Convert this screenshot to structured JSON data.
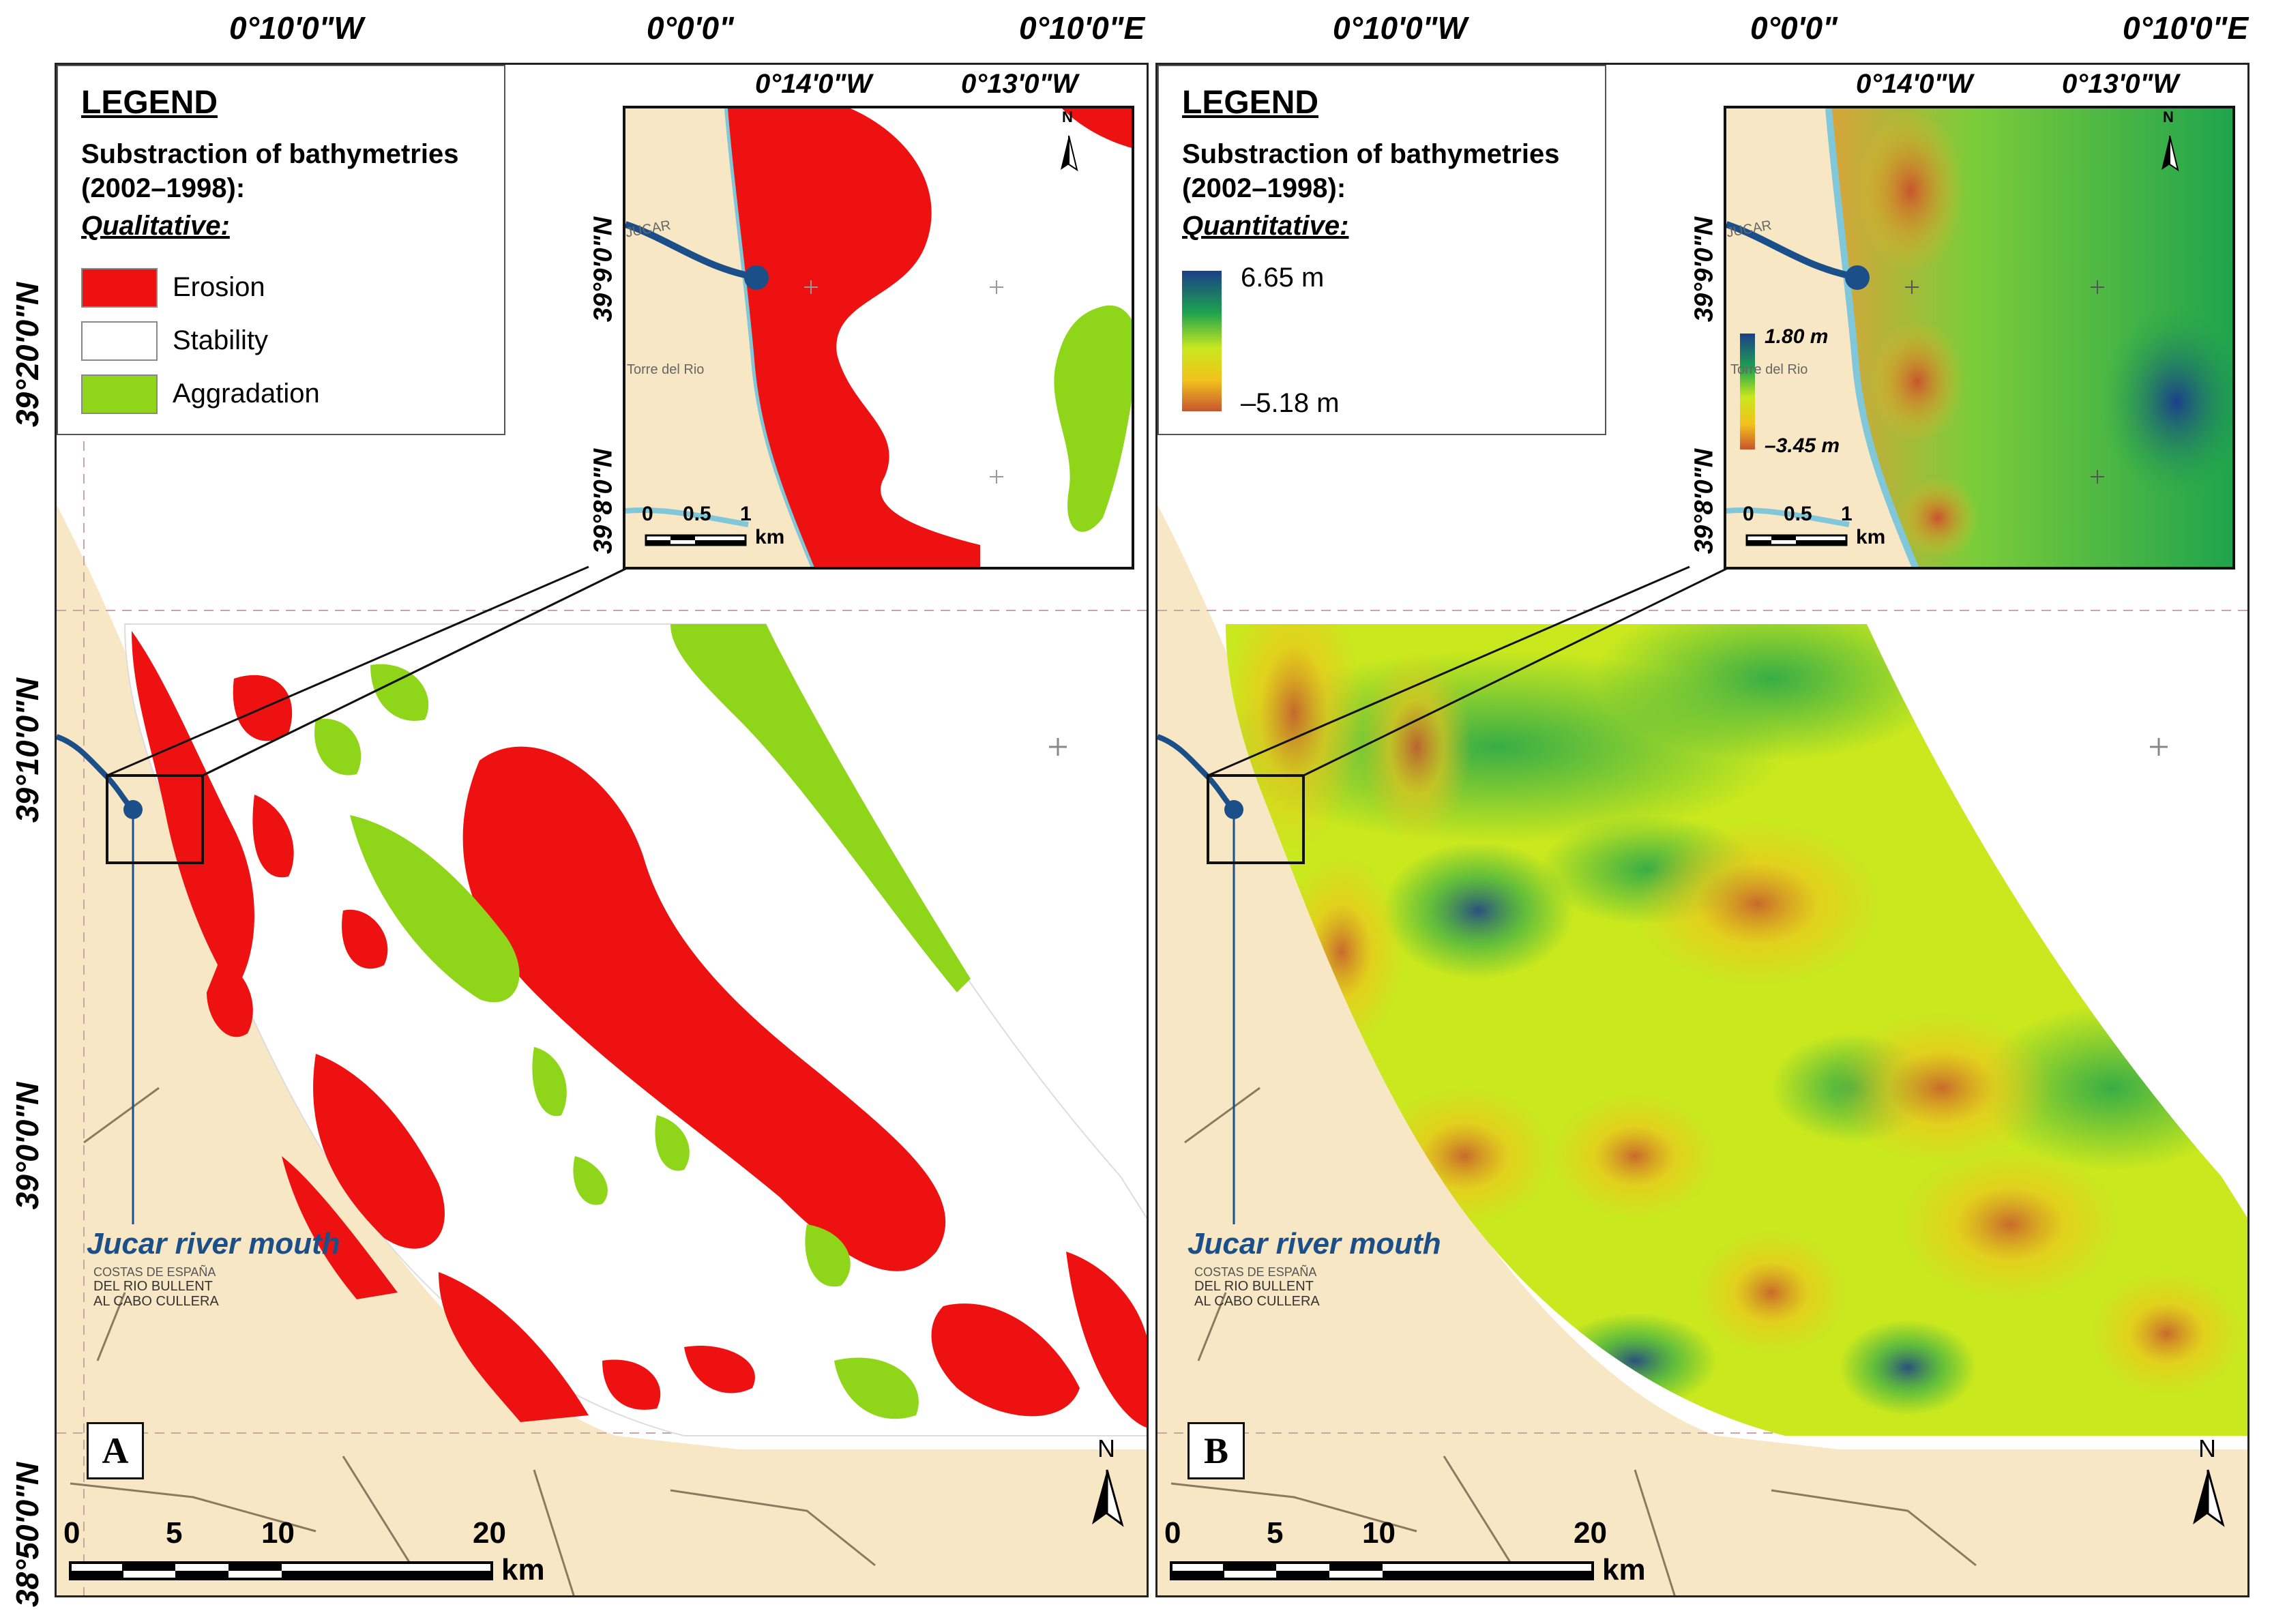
{
  "coordinates": {
    "top_lon_labels": [
      "0°10'0\"W",
      "0°0'0\"",
      "0°10'0\"E"
    ],
    "left_lat_labels": [
      "39°20'0\"N",
      "39°10'0\"N",
      "39°0'0\"N",
      "38°50'0\"N"
    ]
  },
  "panel_a": {
    "letter": "A",
    "legend": {
      "title": "LEGEND",
      "subtitle_line1": "Substraction of bathymetries",
      "subtitle_line2": "(2002–1998):",
      "kind": "Qualitative:",
      "items": [
        {
          "label": "Erosion",
          "color": "#ee1111"
        },
        {
          "label": "Stability",
          "color": "#ffffff"
        },
        {
          "label": "Aggradation",
          "color": "#8fd61a"
        }
      ]
    },
    "inset": {
      "lon_labels": [
        "0°14'0\"W",
        "0°13'0\"W"
      ],
      "lat_labels": [
        "39°9'0\"N",
        "39°8'0\"N"
      ],
      "scale_labels": [
        "0",
        "0.5",
        "1"
      ],
      "scale_unit": "km",
      "place_label": "Torre del Rio",
      "river_text": "JUCAR"
    },
    "river_label": "Jucar river mouth",
    "chart_text": [
      "COSTAS DE ESPAÑA",
      "DEL RIO BULLENT",
      "AL CABO CULLERA"
    ],
    "scale_labels": [
      "0",
      "5",
      "10",
      "20"
    ],
    "scale_unit": "km",
    "north": "N"
  },
  "panel_b": {
    "letter": "B",
    "legend": {
      "title": "LEGEND",
      "subtitle_line1": "Substraction of bathymetries",
      "subtitle_line2": "(2002–1998):",
      "kind": "Quantitative:",
      "max_label": "6.65 m",
      "min_label": "–5.18 m"
    },
    "inset": {
      "lon_labels": [
        "0°14'0\"W",
        "0°13'0\"W"
      ],
      "lat_labels": [
        "39°9'0\"N",
        "39°8'0\"N"
      ],
      "cb_max": "1.80 m",
      "cb_min": "–3.45 m",
      "scale_labels": [
        "0",
        "0.5",
        "1"
      ],
      "scale_unit": "km",
      "place_label": "Torre del Rio",
      "river_text": "JUCAR"
    },
    "river_label": "Jucar river mouth",
    "chart_text": [
      "COSTAS DE ESPAÑA",
      "DEL RIO BULLENT",
      "AL CABO CULLERA"
    ],
    "scale_labels": [
      "0",
      "5",
      "10",
      "20"
    ],
    "scale_unit": "km",
    "north": "N"
  },
  "colors": {
    "land": "#f8e7c4",
    "erosion": "#ee1111",
    "aggradation": "#8fd61a",
    "river": "#1b4f8a",
    "ramp": [
      "#1b3f8a",
      "#1ea34d",
      "#c9e81e",
      "#f2c21c",
      "#c8542e"
    ]
  }
}
